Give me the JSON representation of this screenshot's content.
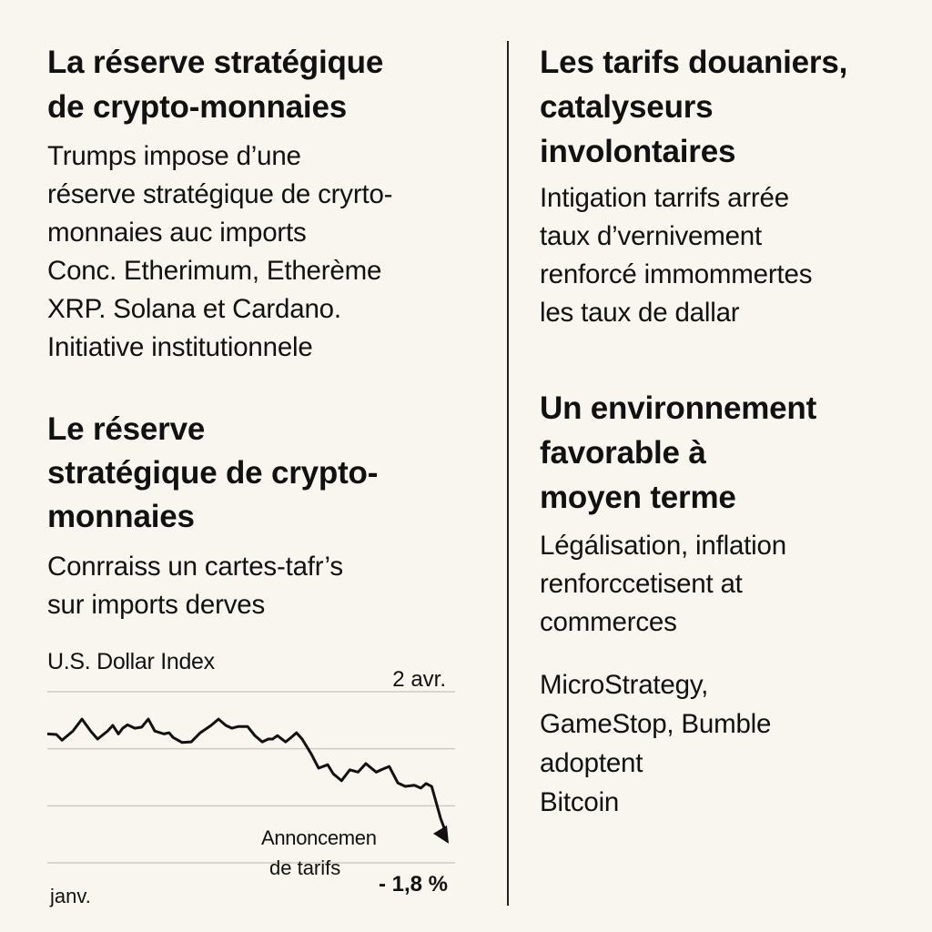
{
  "left": {
    "section1": {
      "heading_lines": [
        "La réserve stratégique",
        "de crypto-monnaies"
      ],
      "body_lines": [
        "Trumps impose d’une",
        "réserve stratégique de cryrto-",
        "monnaies auc imports",
        "Conc. Etherimum, Etherème",
        "XRP. Solana et Cardano.",
        "Initiative institutionnele"
      ]
    },
    "section2": {
      "heading_lines": [
        "Le réserve",
        "stratégique de crypto-",
        "monnaies"
      ],
      "body_lines": [
        "Conrraiss un cartes-tafr’s",
        "sur imports derves"
      ]
    }
  },
  "right": {
    "section1": {
      "heading_lines": [
        "Les tarifs douaniers,",
        "catalyseurs",
        "involontaires"
      ],
      "body_lines": [
        "Intigation tarrifs arrée",
        "taux d’vernivement",
        "renforcé immommertes",
        "les taux de dallar"
      ]
    },
    "section2": {
      "heading_lines": [
        "Un environnement",
        "favorable à",
        "moyen terme"
      ],
      "body_lines": [
        "Légálisation, inflation",
        "renforccetisent at",
        "commerces"
      ],
      "body2_lines": [
        "MicroStrategy,",
        "GameStop, Bumble",
        "adoptent",
        "Bitcoin"
      ]
    }
  },
  "chart_data": {
    "type": "line",
    "title": "U.S. Dollar Index",
    "xlabel": "",
    "ylabel": "",
    "x_start_label": "janv.",
    "x_end_label": "2 avr.",
    "annotation_lines": [
      "Annoncemen",
      "de tarifs"
    ],
    "change_label": "- 1,8 %",
    "grid": true,
    "gridlines": [
      0,
      1,
      2,
      3
    ],
    "xlim": [
      0,
      92
    ],
    "ylim": [
      0,
      3
    ],
    "line_color": "#111111",
    "series": [
      {
        "name": "U.S. Dollar Index",
        "x": [
          0,
          2.1,
          3.4,
          5.9,
          8,
          10.1,
          11.6,
          13.9,
          15.1,
          16.4,
          17.4,
          18.5,
          20.2,
          21.8,
          23.3,
          24.8,
          26.9,
          28.1,
          29,
          31.1,
          33.2,
          35.3,
          37.8,
          39.5,
          41.2,
          42.6,
          44.1,
          46.2,
          47.9,
          49.6,
          51,
          52,
          53.1,
          55,
          56.3,
          57.5,
          58.8,
          60.9,
          62.6,
          64.7,
          66,
          67.9,
          69.8,
          71.7,
          73.5,
          75.9,
          77.3,
          78.9,
          80.9,
          82.6,
          84.7,
          86.2,
          87.4,
          88.7,
          90.8,
          92
        ],
        "y": [
          2.26,
          2.25,
          2.15,
          2.31,
          2.52,
          2.3,
          2.17,
          2.31,
          2.41,
          2.26,
          2.36,
          2.42,
          2.36,
          2.38,
          2.52,
          2.31,
          2.26,
          2.28,
          2.2,
          2.11,
          2.12,
          2.28,
          2.41,
          2.52,
          2.41,
          2.36,
          2.39,
          2.39,
          2.23,
          2.12,
          2.17,
          2.17,
          2.23,
          2.12,
          2.2,
          2.28,
          2.17,
          1.91,
          1.66,
          1.72,
          1.56,
          1.44,
          1.63,
          1.59,
          1.74,
          1.59,
          1.64,
          1.69,
          1.4,
          1.34,
          1.36,
          1.31,
          1.39,
          1.34,
          0.77,
          0.37
        ]
      }
    ]
  }
}
